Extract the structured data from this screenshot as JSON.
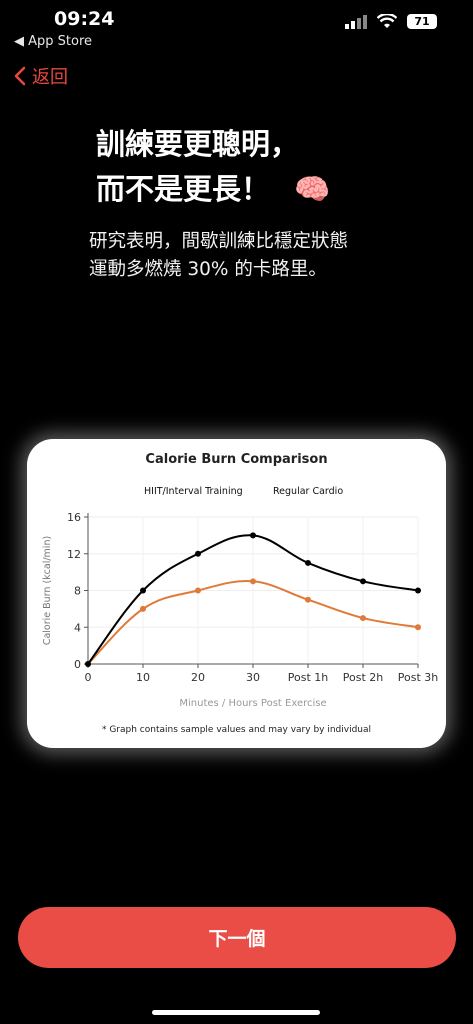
{
  "status_bar": {
    "time": "09:24",
    "back_app": "◀ App Store",
    "battery": "71"
  },
  "nav": {
    "back_label": "返回"
  },
  "headline": {
    "line1": "訓練要更聰明，",
    "line2": "而不是更長！",
    "emoji": "🧠"
  },
  "subtitle": {
    "line1": "研究表明，間歇訓練比穩定狀態",
    "line2": "運動多燃燒 30% 的卡路里。"
  },
  "chart_card": {
    "footnote": "* Graph contains sample values and may vary by individual"
  },
  "chart_data": {
    "type": "line",
    "title": "Calorie Burn Comparison",
    "xlabel": "Minutes / Hours Post Exercise",
    "ylabel": "Calorie Burn (kcal/min)",
    "categories": [
      "0",
      "10",
      "20",
      "30",
      "Post 1h",
      "Post 2h",
      "Post 3h"
    ],
    "ylim": [
      0,
      16
    ],
    "yticks": [
      0,
      4,
      8,
      12,
      16
    ],
    "grid": true,
    "legend_position": "top",
    "series": [
      {
        "name": "HIIT/Interval Training",
        "color": "#000000",
        "values": [
          0,
          8,
          12,
          14,
          11,
          9,
          8
        ]
      },
      {
        "name": "Regular Cardio",
        "color": "#e07a3a",
        "values": [
          0,
          6,
          8,
          9,
          7,
          5,
          4
        ]
      }
    ]
  },
  "next_button": {
    "label": "下一個"
  },
  "colors": {
    "accent": "#ea4c46",
    "background": "#000000",
    "card": "#ffffff"
  }
}
